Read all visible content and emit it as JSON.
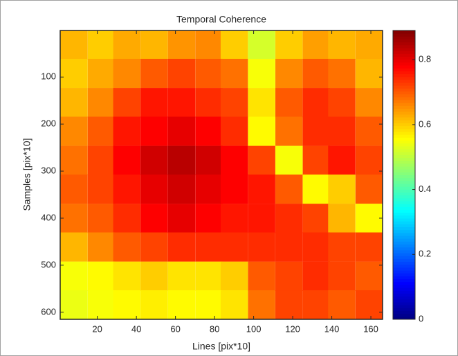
{
  "chart_data": {
    "type": "heatmap",
    "title": "Temporal Coherence",
    "x_label": "Lines [pix*10]",
    "y_label": "Samples [pix*10]",
    "x": [
      8,
      22,
      35,
      49,
      63,
      77,
      90,
      104,
      118,
      132,
      145,
      159
    ],
    "y": [
      31,
      92,
      154,
      215,
      277,
      338,
      400,
      461,
      523,
      584
    ],
    "z": [
      [
        0.62,
        0.6,
        0.63,
        0.62,
        0.65,
        0.66,
        0.6,
        0.52,
        0.6,
        0.64,
        0.62,
        0.63
      ],
      [
        0.6,
        0.63,
        0.66,
        0.7,
        0.72,
        0.7,
        0.68,
        0.55,
        0.66,
        0.7,
        0.68,
        0.62
      ],
      [
        0.62,
        0.66,
        0.72,
        0.76,
        0.76,
        0.74,
        0.72,
        0.58,
        0.7,
        0.74,
        0.72,
        0.66
      ],
      [
        0.66,
        0.7,
        0.76,
        0.78,
        0.8,
        0.78,
        0.74,
        0.56,
        0.68,
        0.74,
        0.74,
        0.7
      ],
      [
        0.68,
        0.72,
        0.78,
        0.82,
        0.84,
        0.82,
        0.78,
        0.72,
        0.55,
        0.72,
        0.76,
        0.72
      ],
      [
        0.7,
        0.72,
        0.76,
        0.8,
        0.82,
        0.8,
        0.78,
        0.76,
        0.7,
        0.56,
        0.6,
        0.7
      ],
      [
        0.68,
        0.7,
        0.74,
        0.78,
        0.8,
        0.78,
        0.76,
        0.76,
        0.74,
        0.72,
        0.62,
        0.56
      ],
      [
        0.62,
        0.66,
        0.7,
        0.72,
        0.74,
        0.74,
        0.74,
        0.74,
        0.74,
        0.74,
        0.72,
        0.72
      ],
      [
        0.55,
        0.56,
        0.58,
        0.6,
        0.58,
        0.58,
        0.6,
        0.7,
        0.72,
        0.74,
        0.72,
        0.7
      ],
      [
        0.54,
        0.55,
        0.56,
        0.57,
        0.56,
        0.56,
        0.58,
        0.68,
        0.72,
        0.72,
        0.7,
        0.72
      ]
    ],
    "xlim": [
      1,
      166
    ],
    "ylim": [
      1,
      615
    ],
    "y_reversed": true,
    "xticks": [
      20,
      40,
      60,
      80,
      100,
      120,
      140,
      160
    ],
    "yticks": [
      100,
      200,
      300,
      400,
      500,
      600
    ],
    "colormap": "jet",
    "clim": [
      0,
      0.89
    ],
    "cticks": [
      0,
      0.2,
      0.4,
      0.6,
      0.8
    ]
  }
}
